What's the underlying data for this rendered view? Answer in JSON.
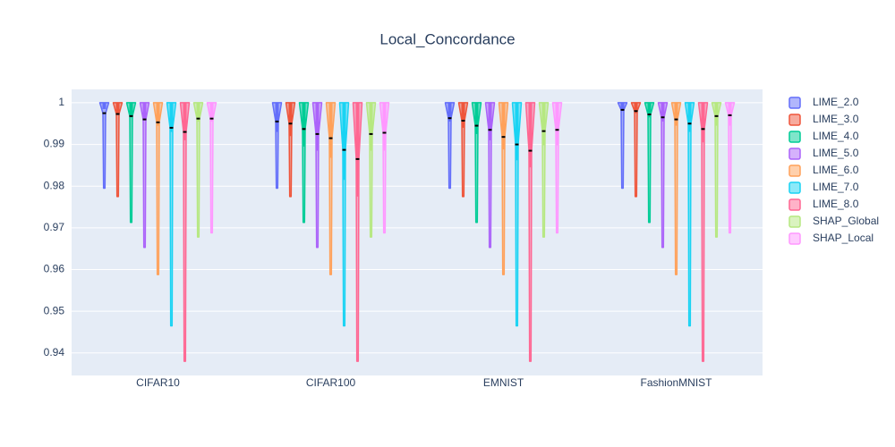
{
  "chart_data": {
    "type": "violin",
    "title": "Local_Concordance",
    "categories": [
      "CIFAR10",
      "CIFAR100",
      "EMNIST",
      "FashionMNIST"
    ],
    "ylim": [
      0.9346,
      1.0032
    ],
    "yticks": [
      0.94,
      0.95,
      0.96,
      0.97,
      0.98,
      0.99,
      1
    ],
    "grid": true,
    "legend": "right",
    "series": [
      {
        "name": "LIME_2.0",
        "color": "#636efa",
        "values": [
          {
            "min": 0.9795,
            "q1": 0.9985,
            "q3": 1,
            "max": 1,
            "mean": 0.9975
          },
          {
            "min": 0.9795,
            "q1": 0.993,
            "q3": 1,
            "max": 1,
            "mean": 0.9955
          },
          {
            "min": 0.9795,
            "q1": 0.9955,
            "q3": 1,
            "max": 1,
            "mean": 0.9963
          },
          {
            "min": 0.9795,
            "q1": 0.998,
            "q3": 1,
            "max": 1,
            "mean": 0.9983
          }
        ]
      },
      {
        "name": "LIME_3.0",
        "color": "#EF553B",
        "values": [
          {
            "min": 0.9775,
            "q1": 0.9975,
            "q3": 1,
            "max": 1,
            "mean": 0.9973
          },
          {
            "min": 0.9775,
            "q1": 0.992,
            "q3": 1,
            "max": 1,
            "mean": 0.995
          },
          {
            "min": 0.9775,
            "q1": 0.994,
            "q3": 1,
            "max": 1,
            "mean": 0.9957
          },
          {
            "min": 0.9775,
            "q1": 0.9975,
            "q3": 1,
            "max": 1,
            "mean": 0.998
          }
        ]
      },
      {
        "name": "LIME_4.0",
        "color": "#00cc96",
        "values": [
          {
            "min": 0.9713,
            "q1": 0.9965,
            "q3": 1,
            "max": 1,
            "mean": 0.9968
          },
          {
            "min": 0.9713,
            "q1": 0.9895,
            "q3": 1,
            "max": 1,
            "mean": 0.9937
          },
          {
            "min": 0.9713,
            "q1": 0.9925,
            "q3": 1,
            "max": 1,
            "mean": 0.9945
          },
          {
            "min": 0.9713,
            "q1": 0.9965,
            "q3": 1,
            "max": 1,
            "mean": 0.9972
          }
        ]
      },
      {
        "name": "LIME_5.0",
        "color": "#ab63fa",
        "values": [
          {
            "min": 0.9653,
            "q1": 0.996,
            "q3": 1,
            "max": 1,
            "mean": 0.996
          },
          {
            "min": 0.9653,
            "q1": 0.9885,
            "q3": 1,
            "max": 1,
            "mean": 0.9925
          },
          {
            "min": 0.9653,
            "q1": 0.991,
            "q3": 1,
            "max": 1,
            "mean": 0.9935
          },
          {
            "min": 0.9653,
            "q1": 0.9955,
            "q3": 1,
            "max": 1,
            "mean": 0.9965
          }
        ]
      },
      {
        "name": "LIME_6.0",
        "color": "#FFA15A",
        "values": [
          {
            "min": 0.9588,
            "q1": 0.9945,
            "q3": 1,
            "max": 1,
            "mean": 0.9953
          },
          {
            "min": 0.9588,
            "q1": 0.9868,
            "q3": 1,
            "max": 1,
            "mean": 0.9915
          },
          {
            "min": 0.9588,
            "q1": 0.9888,
            "q3": 1,
            "max": 1,
            "mean": 0.9918
          },
          {
            "min": 0.9588,
            "q1": 0.9945,
            "q3": 1,
            "max": 1,
            "mean": 0.996
          }
        ]
      },
      {
        "name": "LIME_7.0",
        "color": "#19d3f3",
        "values": [
          {
            "min": 0.9465,
            "q1": 0.993,
            "q3": 1,
            "max": 1,
            "mean": 0.994
          },
          {
            "min": 0.9465,
            "q1": 0.9815,
            "q3": 1,
            "max": 1,
            "mean": 0.9887
          },
          {
            "min": 0.9465,
            "q1": 0.9862,
            "q3": 1,
            "max": 1,
            "mean": 0.99
          },
          {
            "min": 0.9465,
            "q1": 0.993,
            "q3": 1,
            "max": 1,
            "mean": 0.995
          }
        ]
      },
      {
        "name": "LIME_8.0",
        "color": "#FF6692",
        "values": [
          {
            "min": 0.938,
            "q1": 0.991,
            "q3": 1,
            "max": 1,
            "mean": 0.993
          },
          {
            "min": 0.938,
            "q1": 0.9775,
            "q3": 1,
            "max": 1,
            "mean": 0.9865
          },
          {
            "min": 0.938,
            "q1": 0.9845,
            "q3": 1,
            "max": 1,
            "mean": 0.9885
          },
          {
            "min": 0.938,
            "q1": 0.9905,
            "q3": 1,
            "max": 1,
            "mean": 0.9937
          }
        ]
      },
      {
        "name": "SHAP_Global",
        "color": "#B6E880",
        "values": [
          {
            "min": 0.9678,
            "q1": 0.9955,
            "q3": 1,
            "max": 1,
            "mean": 0.9962
          },
          {
            "min": 0.9678,
            "q1": 0.9885,
            "q3": 1,
            "max": 1,
            "mean": 0.9925
          },
          {
            "min": 0.9678,
            "q1": 0.9898,
            "q3": 1,
            "max": 1,
            "mean": 0.9932
          },
          {
            "min": 0.9678,
            "q1": 0.9945,
            "q3": 1,
            "max": 1,
            "mean": 0.9968
          }
        ]
      },
      {
        "name": "SHAP_Local",
        "color": "#FF97FF",
        "values": [
          {
            "min": 0.9688,
            "q1": 0.9955,
            "q3": 1,
            "max": 1,
            "mean": 0.9962
          },
          {
            "min": 0.9688,
            "q1": 0.9885,
            "q3": 1,
            "max": 1,
            "mean": 0.9928
          },
          {
            "min": 0.9688,
            "q1": 0.9898,
            "q3": 1,
            "max": 1,
            "mean": 0.9935
          },
          {
            "min": 0.9688,
            "q1": 0.9945,
            "q3": 1,
            "max": 1,
            "mean": 0.997
          }
        ]
      }
    ]
  }
}
